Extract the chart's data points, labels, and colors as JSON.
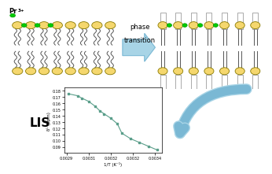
{
  "title": "",
  "background_color": "#ffffff",
  "lipid_yellow": "#f5d76e",
  "lipid_outline": "#8a7a00",
  "green_dot": "#5cb85c",
  "green_dot_bright": "#00cc00",
  "arrow_color": "#a8d4e6",
  "arrow_edge": "#7ab8d4",
  "text_color": "#000000",
  "plot_line_color": "#5a9e8a",
  "plot_bg": "#ffffff",
  "pr_label": "Pr3+",
  "phase_label": "phase\ntransition",
  "lis_label": "LIS",
  "xlabel": "1/T (K⁻¹)",
  "ylabel": "δᴸ (ppm)",
  "x_data": [
    0.00296,
    0.003,
    0.00302,
    0.00305,
    0.00308,
    0.0031,
    0.00312,
    0.00315,
    0.00318,
    0.0032,
    0.00324,
    0.00328,
    0.00332,
    0.00336
  ],
  "y_data": [
    0.175,
    0.172,
    0.168,
    0.163,
    0.155,
    0.148,
    0.143,
    0.136,
    0.127,
    0.112,
    0.103,
    0.097,
    0.091,
    0.085
  ],
  "xlim": [
    0.00294,
    0.00338
  ],
  "ylim": [
    0.08,
    0.185
  ],
  "xticks": [
    0.00295,
    0.00305,
    0.00315,
    0.00325,
    0.00335
  ],
  "yticks": [
    0.09,
    0.1,
    0.11,
    0.12,
    0.13,
    0.14,
    0.15,
    0.16,
    0.17,
    0.18
  ],
  "ytick_labels": [
    "0.09",
    "0.10",
    "0.11",
    "0.12",
    "0.13",
    "0.14",
    "0.15",
    "0.16",
    "0.17",
    "0.18"
  ]
}
